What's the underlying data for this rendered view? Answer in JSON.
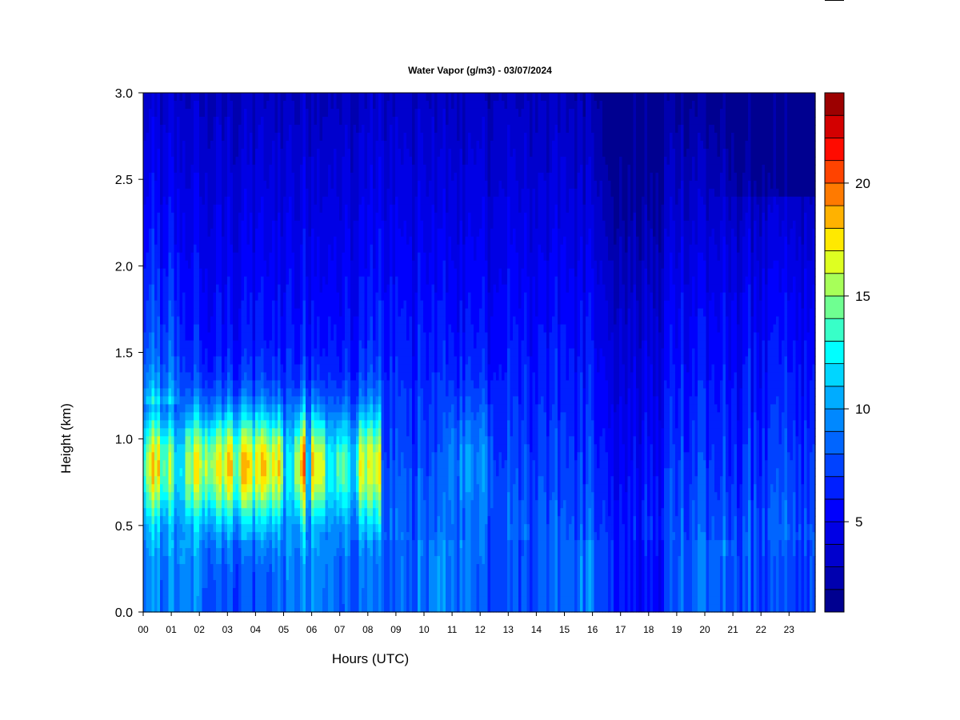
{
  "chart_data": {
    "type": "heatmap",
    "title": "Water Vapor (g/m3) - 03/07/2024",
    "xlabel": "Hours (UTC)",
    "ylabel": "Height (km)",
    "x_ticks": [
      "00",
      "01",
      "02",
      "03",
      "04",
      "05",
      "06",
      "07",
      "08",
      "09",
      "10",
      "11",
      "12",
      "13",
      "14",
      "15",
      "16",
      "17",
      "18",
      "19",
      "20",
      "21",
      "22",
      "23"
    ],
    "y_ticks": [
      "0.0",
      "0.5",
      "1.0",
      "1.5",
      "2.0",
      "2.5",
      "3.0"
    ],
    "xlim": [
      0,
      24
    ],
    "ylim": [
      0,
      3.0
    ],
    "colorbar": {
      "ticks": [
        "5",
        "10",
        "15",
        "20"
      ],
      "tick_values": [
        5,
        10,
        15,
        20
      ],
      "range": [
        1,
        24
      ],
      "levels": 23,
      "colormap": [
        "#000080",
        "#0000c8",
        "#0000ff",
        "#0050ff",
        "#00a0ff",
        "#00ffff",
        "#80ff80",
        "#ffff00",
        "#ff8000",
        "#ff0000",
        "#800000"
      ]
    },
    "features": {
      "background_near_surface": 8.5,
      "moist_layer_km": [
        0.5,
        1.2
      ],
      "moist_layer_peak": 19,
      "moist_layer_hours": [
        0,
        8.5
      ],
      "secondary_moist_hours": [
        10.8,
        12.5
      ],
      "dry_aloft_late_day": 3
    },
    "grid": false,
    "legend": "right"
  }
}
